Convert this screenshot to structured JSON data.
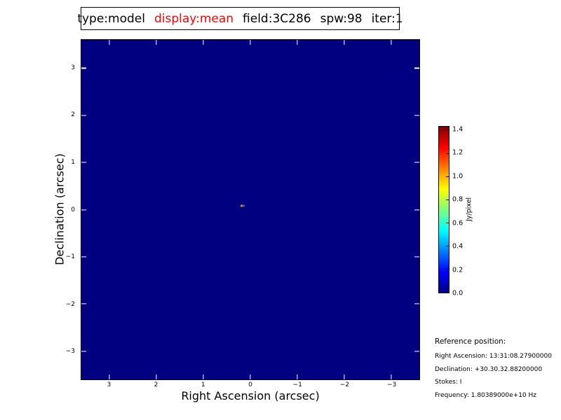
{
  "title_box": {
    "segments": [
      {
        "text": "type:model",
        "color": "#000000"
      },
      {
        "text": "display:mean",
        "color": "#ff0000"
      },
      {
        "text": "field:3C286",
        "color": "#000000"
      },
      {
        "text": "spw:98",
        "color": "#000000"
      },
      {
        "text": "iter:1",
        "color": "#000000"
      }
    ]
  },
  "plot": {
    "xlabel": "Right Ascension (arcsec)",
    "ylabel": "Declination (arcsec)",
    "x_tick_labels": [
      "3",
      "2",
      "1",
      "0",
      "−1",
      "−2",
      "−3"
    ],
    "y_tick_labels": [
      "3",
      "2",
      "1",
      "0",
      "−1",
      "−2",
      "−3"
    ],
    "background_color": "#000080",
    "tick_color": "#ffffff"
  },
  "colorbar": {
    "label": "Jy/pixel",
    "tick_labels": [
      "0.0",
      "0.2",
      "0.4",
      "0.6",
      "0.8",
      "1.0",
      "1.2",
      "1.4"
    ],
    "tick_values": [
      0.0,
      0.2,
      0.4,
      0.6,
      0.8,
      1.0,
      1.2,
      1.4
    ],
    "vmin": 0.0,
    "vmax": 1.43,
    "colormap": "jet"
  },
  "reference": {
    "heading": "Reference position:",
    "lines": [
      "Right Ascension: 13:31:08.27900000",
      "Declination: +30.30.32.88200000",
      "Stokes: I",
      "Frequency: 1.80389000e+10 Hz"
    ]
  },
  "chart_data": {
    "type": "heatmap",
    "title": "type:model display:mean field:3C286 spw:98 iter:1",
    "xlabel": "Right Ascension (arcsec)",
    "ylabel": "Declination (arcsec)",
    "x_ticks": [
      3,
      2,
      1,
      0,
      -1,
      -2,
      -3
    ],
    "y_ticks": [
      3,
      2,
      1,
      0,
      -1,
      -2,
      -3
    ],
    "xlim": [
      3.6,
      -3.6
    ],
    "ylim": [
      -3.6,
      3.6
    ],
    "grid": false,
    "colormap": "jet",
    "colorbar": {
      "label": "Jy/pixel",
      "vmin": 0.0,
      "vmax": 1.43,
      "ticks": [
        0.0,
        0.2,
        0.4,
        0.6,
        0.8,
        1.0,
        1.2,
        1.4
      ]
    },
    "background_value": 0.0,
    "points": [
      {
        "ra_offset_arcsec": 0.16,
        "dec_offset_arcsec": 0.08,
        "colors": [
          "#ef7d12",
          "#2a5fd4"
        ],
        "note": "compact model source near field center"
      }
    ]
  }
}
